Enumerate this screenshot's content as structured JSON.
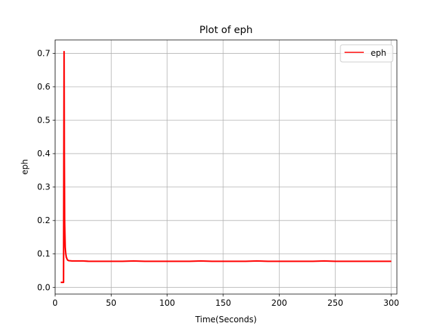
{
  "chart_data": {
    "type": "line",
    "title": "Plot of eph",
    "xlabel": "Time(Seconds)",
    "ylabel": "eph",
    "xlim": [
      0,
      305
    ],
    "ylim": [
      -0.02,
      0.74
    ],
    "xticks": [
      0,
      50,
      100,
      150,
      200,
      250,
      300
    ],
    "yticks": [
      0.0,
      0.1,
      0.2,
      0.3,
      0.4,
      0.5,
      0.6,
      0.7
    ],
    "xtick_labels": [
      "0",
      "50",
      "100",
      "150",
      "200",
      "250",
      "300"
    ],
    "ytick_labels": [
      "0.0",
      "0.1",
      "0.2",
      "0.3",
      "0.4",
      "0.5",
      "0.6",
      "0.7"
    ],
    "grid": true,
    "legend_position": "top-right",
    "series": [
      {
        "name": "eph",
        "color": "#ff0000",
        "x": [
          5,
          6,
          7,
          7.5,
          8,
          8.2,
          8.5,
          9,
          9.5,
          10,
          11,
          12,
          15,
          20,
          25,
          30,
          40,
          50,
          60,
          70,
          80,
          90,
          100,
          110,
          120,
          130,
          140,
          150,
          160,
          170,
          180,
          190,
          200,
          210,
          220,
          230,
          240,
          250,
          260,
          270,
          280,
          290,
          300
        ],
        "y": [
          0.015,
          0.015,
          0.015,
          0.015,
          0.705,
          0.4,
          0.2,
          0.12,
          0.1,
          0.09,
          0.082,
          0.08,
          0.079,
          0.079,
          0.079,
          0.078,
          0.078,
          0.078,
          0.078,
          0.079,
          0.078,
          0.078,
          0.078,
          0.078,
          0.078,
          0.079,
          0.078,
          0.078,
          0.078,
          0.078,
          0.079,
          0.078,
          0.078,
          0.078,
          0.078,
          0.078,
          0.079,
          0.078,
          0.078,
          0.078,
          0.078,
          0.078,
          0.078
        ]
      }
    ]
  }
}
